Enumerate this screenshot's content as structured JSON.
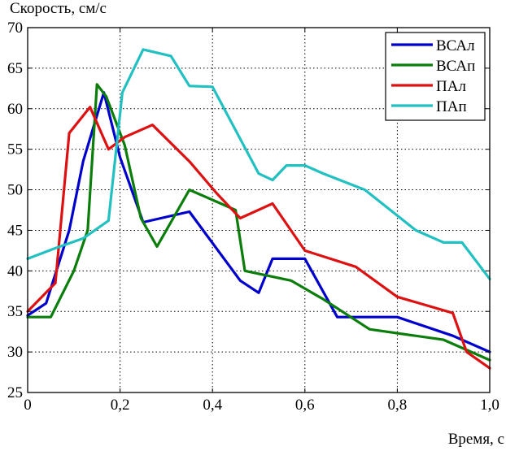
{
  "chart_data": {
    "type": "line",
    "title": "",
    "xlabel": "Время, с",
    "ylabel": "Скорость, см/с",
    "xlim": [
      0,
      1.0
    ],
    "ylim": [
      25,
      70
    ],
    "x_ticks": [
      0,
      0.2,
      0.4,
      0.6,
      0.8,
      1.0
    ],
    "x_tick_labels": [
      "0",
      "0,2",
      "0,4",
      "0,6",
      "0,8",
      "1,0"
    ],
    "y_ticks": [
      25,
      30,
      35,
      40,
      45,
      50,
      55,
      60,
      65,
      70
    ],
    "y_tick_labels": [
      "25",
      "30",
      "35",
      "40",
      "45",
      "50",
      "55",
      "60",
      "65",
      "70"
    ],
    "grid": true,
    "legend_position": "top-right",
    "series": [
      {
        "name": "ВСАл",
        "color": "#0000cc",
        "points": [
          [
            0,
            34.5
          ],
          [
            0.04,
            36
          ],
          [
            0.09,
            45
          ],
          [
            0.12,
            53.5
          ],
          [
            0.165,
            62
          ],
          [
            0.2,
            54
          ],
          [
            0.25,
            46
          ],
          [
            0.35,
            47.3
          ],
          [
            0.46,
            38.8
          ],
          [
            0.5,
            37.3
          ],
          [
            0.53,
            41.5
          ],
          [
            0.6,
            41.5
          ],
          [
            0.67,
            34.3
          ],
          [
            0.8,
            34.3
          ],
          [
            0.92,
            32
          ],
          [
            1.0,
            30
          ]
        ]
      },
      {
        "name": "ВСАп",
        "color": "#0b7d0b",
        "points": [
          [
            0,
            34.3
          ],
          [
            0.05,
            34.3
          ],
          [
            0.1,
            40
          ],
          [
            0.13,
            45
          ],
          [
            0.15,
            63
          ],
          [
            0.17,
            61.5
          ],
          [
            0.21,
            55.5
          ],
          [
            0.245,
            46.5
          ],
          [
            0.28,
            43
          ],
          [
            0.35,
            50
          ],
          [
            0.41,
            48.5
          ],
          [
            0.45,
            47.5
          ],
          [
            0.47,
            40
          ],
          [
            0.57,
            38.8
          ],
          [
            0.64,
            36.5
          ],
          [
            0.74,
            32.8
          ],
          [
            0.9,
            31.5
          ],
          [
            1.0,
            29
          ]
        ]
      },
      {
        "name": "ПАл",
        "color": "#dd1111",
        "points": [
          [
            0,
            35
          ],
          [
            0.06,
            38.5
          ],
          [
            0.09,
            57
          ],
          [
            0.135,
            60.2
          ],
          [
            0.175,
            55
          ],
          [
            0.21,
            56.5
          ],
          [
            0.27,
            58
          ],
          [
            0.35,
            53.5
          ],
          [
            0.41,
            49.5
          ],
          [
            0.46,
            46.5
          ],
          [
            0.53,
            48.3
          ],
          [
            0.6,
            42.5
          ],
          [
            0.71,
            40.5
          ],
          [
            0.8,
            36.8
          ],
          [
            0.92,
            34.8
          ],
          [
            0.95,
            30
          ],
          [
            1.0,
            28
          ]
        ]
      },
      {
        "name": "ПАп",
        "color": "#22c0c0",
        "points": [
          [
            0,
            41.5
          ],
          [
            0.06,
            42.8
          ],
          [
            0.12,
            44
          ],
          [
            0.175,
            46.2
          ],
          [
            0.205,
            62
          ],
          [
            0.25,
            67.3
          ],
          [
            0.31,
            66.5
          ],
          [
            0.35,
            62.8
          ],
          [
            0.4,
            62.7
          ],
          [
            0.5,
            52
          ],
          [
            0.53,
            51.2
          ],
          [
            0.56,
            53
          ],
          [
            0.6,
            53
          ],
          [
            0.64,
            52
          ],
          [
            0.73,
            50
          ],
          [
            0.84,
            45
          ],
          [
            0.9,
            43.5
          ],
          [
            0.94,
            43.5
          ],
          [
            1.0,
            39
          ]
        ]
      }
    ]
  }
}
